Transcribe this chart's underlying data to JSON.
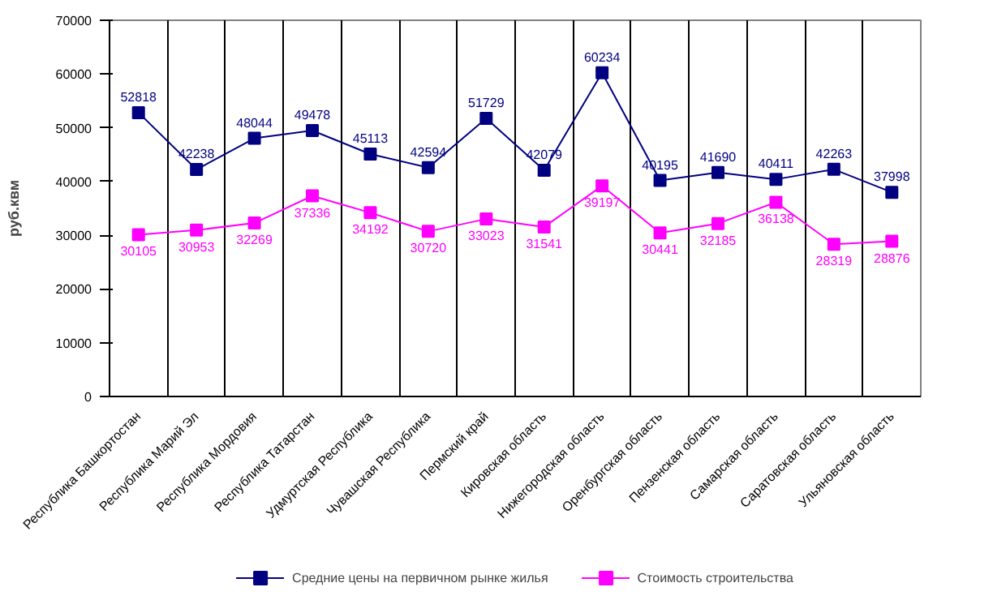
{
  "chart_data": {
    "type": "line",
    "ylabel": "руб.квм",
    "categories": [
      "Республика Башкортостан",
      "Республика Марий Эл",
      "Республика Мордовия",
      "Республика Татарстан",
      "Удмуртская Республика",
      "Чувашская Республика",
      "Пермский край",
      "Кировская область",
      "Нижегородская область",
      "Оренбургская область",
      "Пензенская область",
      "Самарская область",
      "Саратовская область",
      "Ульяновская область"
    ],
    "series": [
      {
        "name": "Средние цены на первичном рынке жилья",
        "color": "#000080",
        "values": [
          52818,
          42238,
          48044,
          49478,
          45113,
          42594,
          51729,
          42079,
          60234,
          40195,
          41690,
          40411,
          42263,
          37998
        ]
      },
      {
        "name": "Стоимость строительства",
        "color": "#ff00ff",
        "values": [
          30105,
          30953,
          32269,
          37336,
          34192,
          30720,
          33023,
          31541,
          39197,
          30441,
          32185,
          36138,
          28319,
          28876
        ]
      }
    ],
    "ylim": [
      0,
      70000
    ],
    "yticks": [
      0,
      10000,
      20000,
      30000,
      40000,
      50000,
      60000,
      70000
    ],
    "grid": "x",
    "legend": "bottom",
    "marker": "square",
    "line_style": "solid",
    "data_labels": true
  }
}
